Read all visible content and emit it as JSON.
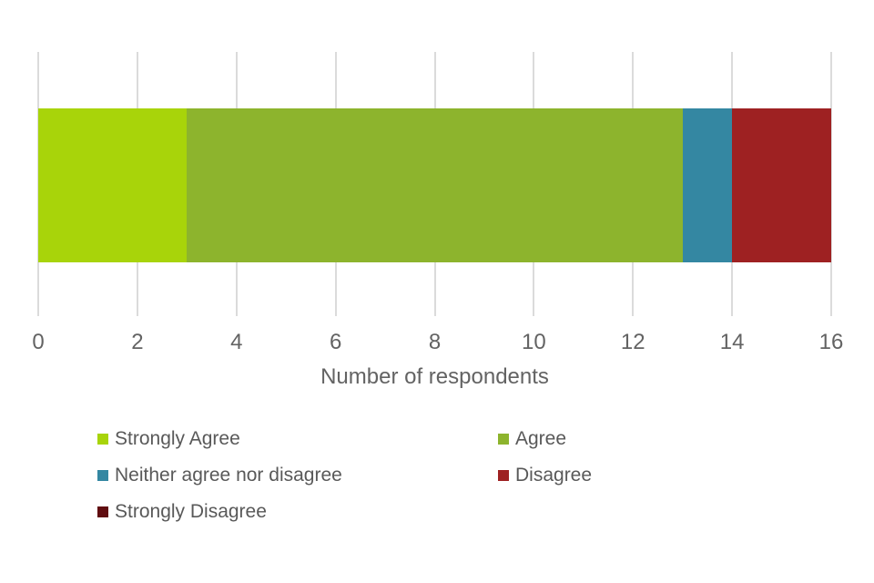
{
  "chart_data": {
    "type": "bar",
    "orientation": "horizontal",
    "stacked": true,
    "title": "",
    "xlabel": "Number of respondents",
    "ylabel": "",
    "xlim": [
      0,
      16
    ],
    "xticks": [
      0,
      2,
      4,
      6,
      8,
      10,
      12,
      14,
      16
    ],
    "grid": true,
    "legend_position": "bottom",
    "series": [
      {
        "name": "Strongly Agree",
        "value": 3,
        "color": "#A8D40A"
      },
      {
        "name": "Agree",
        "value": 10,
        "color": "#8DB42D"
      },
      {
        "name": "Neither agree nor disagree",
        "value": 1,
        "color": "#3487A2"
      },
      {
        "name": "Disagree",
        "value": 2,
        "color": "#9E2122"
      },
      {
        "name": "Strongly Disagree",
        "value": 0,
        "color": "#600D10"
      }
    ]
  },
  "colors": {
    "background": "#FFFFFF",
    "gridline": "#DBDBDB",
    "axis_text": "#636363",
    "legend_text": "#595959"
  }
}
